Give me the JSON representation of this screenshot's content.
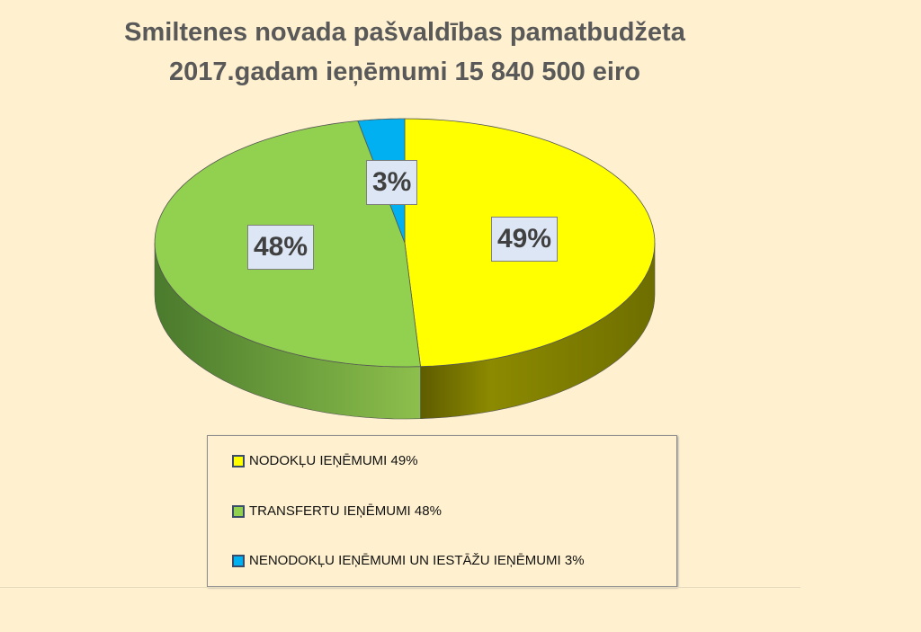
{
  "chart_data": {
    "type": "pie",
    "title": "Smiltenes novada pašvaldības pamatbudžeta 2017.gadam ieņēmumi 15 840 500 eiro",
    "title_lines": [
      "Smiltenes novada pašvaldības pamatbudžeta",
      "2017.gadam ieņēmumi 15 840 500 eiro"
    ],
    "style": "3d",
    "legend_position": "bottom",
    "slices": [
      {
        "name": "NODOKĻU IEŅĒMUMI 49%",
        "value": 49,
        "label": "49%",
        "color": "#ffff00",
        "side_color": "#7a7a00"
      },
      {
        "name": "TRANSFERTU IEŅĒMUMI 48%",
        "value": 48,
        "label": "48%",
        "color": "#92d050",
        "side_color": "#5f8c34"
      },
      {
        "name": "NENODOKĻU IEŅĒMUMI UN IESTĀŽU IEŅĒMUMI 3%",
        "value": 3,
        "label": "3%",
        "color": "#00b0f0",
        "side_color": "#0080b0"
      }
    ]
  }
}
